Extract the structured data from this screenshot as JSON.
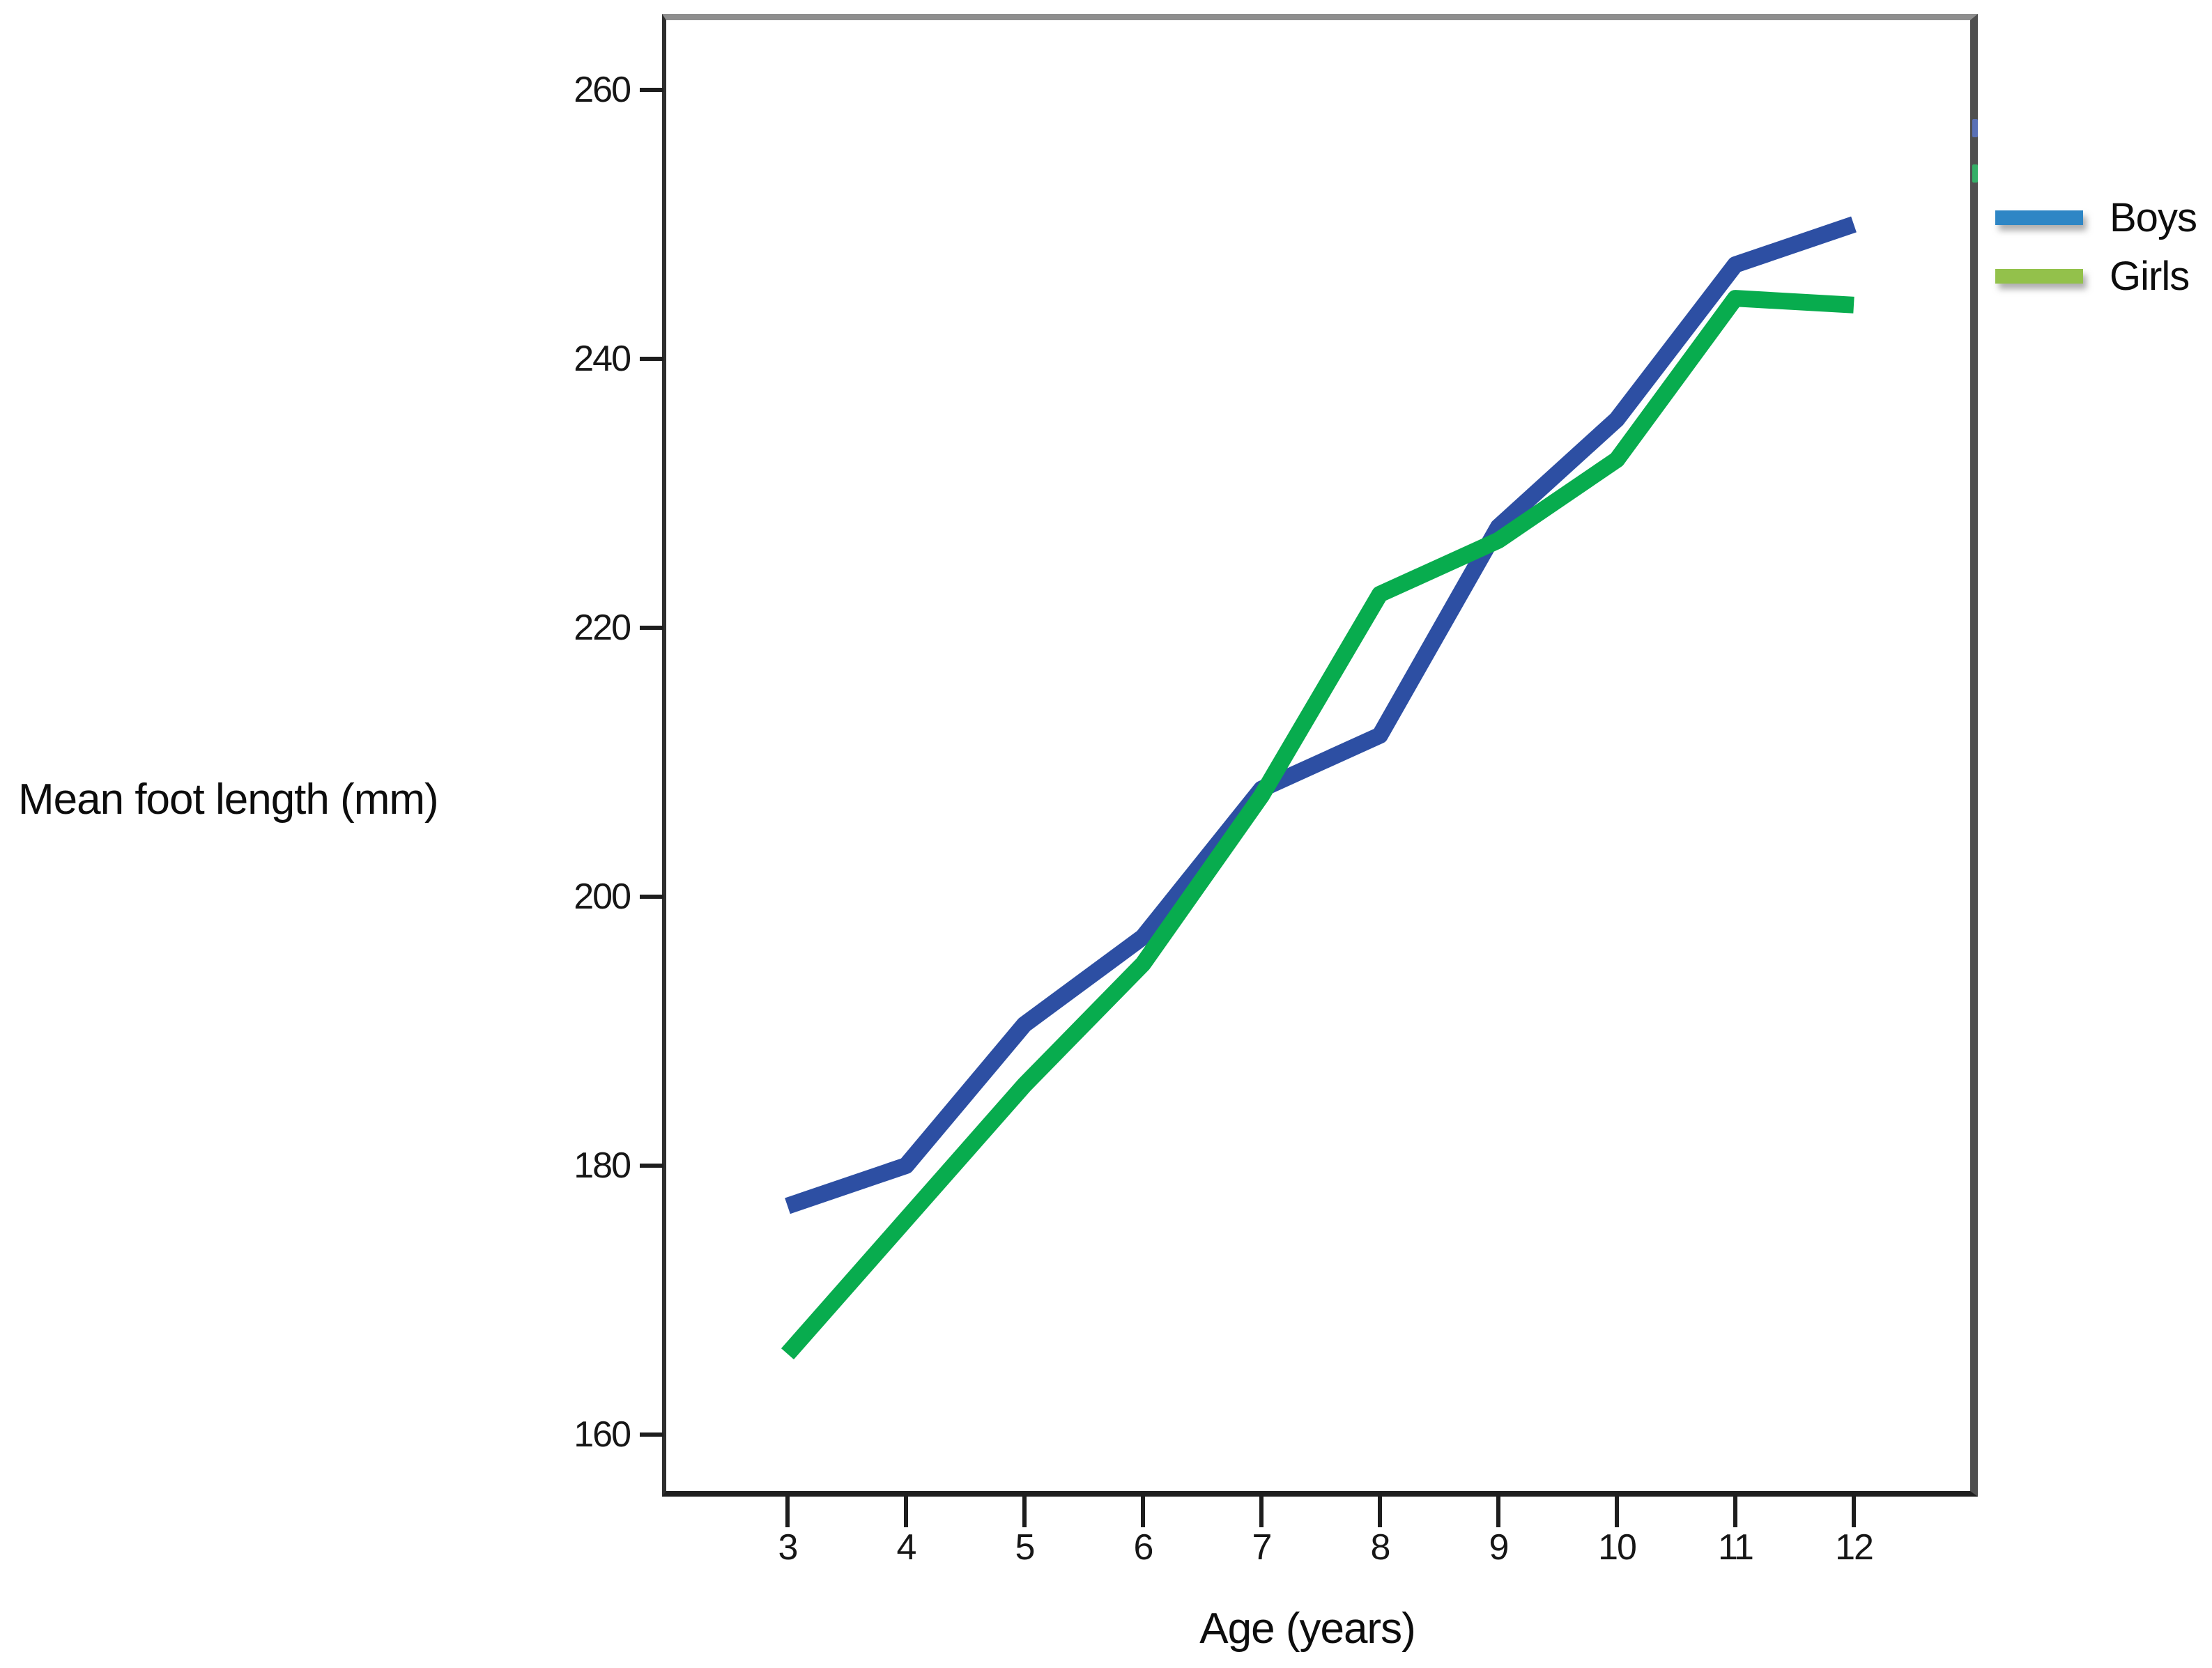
{
  "axis": {
    "y_title": "Mean foot length (mm)",
    "x_title": "Age (years)"
  },
  "chart_data": {
    "type": "line",
    "title": "",
    "xlabel": "Age (years)",
    "ylabel": "Mean foot length (mm)",
    "x": [
      3,
      4,
      5,
      6,
      7,
      8,
      9,
      10,
      11,
      12
    ],
    "xticks": [
      "3",
      "4",
      "5",
      "6",
      "7",
      "8",
      "9",
      "10",
      "11",
      "12"
    ],
    "yticks": [
      160,
      180,
      200,
      220,
      240,
      260
    ],
    "ylim": [
      155,
      265
    ],
    "xlim": [
      2,
      13
    ],
    "grid": false,
    "legend_position": "right",
    "series": [
      {
        "name": "Boys",
        "color": "#2d4fa3",
        "legend_swatch_color": "#2e86c5",
        "artifact_color": "#5b76c8",
        "values": [
          177,
          180,
          190.5,
          197,
          208,
          212,
          227.5,
          235.5,
          247,
          250
        ]
      },
      {
        "name": "Girls",
        "color": "#08ac4e",
        "legend_swatch_color": "#93c14b",
        "artifact_color": "#2fbf6b",
        "values": [
          166,
          176,
          186,
          195,
          207.5,
          222.5,
          226.5,
          232.5,
          244.5,
          244
        ]
      }
    ]
  }
}
